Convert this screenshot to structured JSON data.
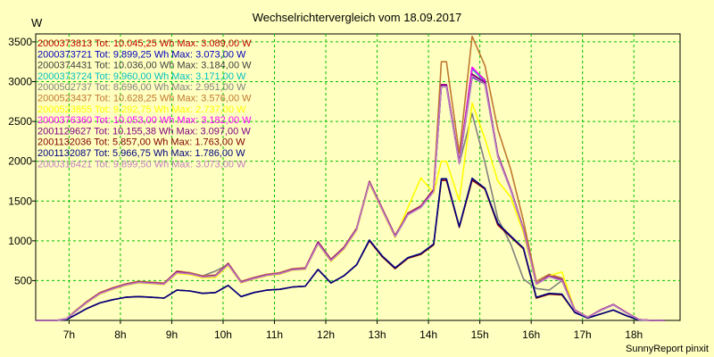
{
  "chart_data": {
    "type": "line",
    "title": "Wechselrichtervergleich vom 18.09.2017",
    "ylabel": "W",
    "footer": "SunnyReport pinxit",
    "ylim": [
      0,
      3600
    ],
    "xlim": [
      6.35,
      18.9
    ],
    "yticks": [
      500,
      1000,
      1500,
      2000,
      2500,
      3000,
      3500
    ],
    "xticks": [
      7,
      8,
      9,
      10,
      11,
      12,
      13,
      14,
      15,
      16,
      17,
      18
    ],
    "xtick_labels": [
      "7h",
      "8h",
      "9h",
      "10h",
      "11h",
      "12h",
      "13h",
      "14h",
      "15h",
      "16h",
      "17h",
      "18h"
    ],
    "grid": true,
    "legend_position": "top-left",
    "x": [
      6.35,
      6.75,
      6.95,
      7.1,
      7.35,
      7.6,
      7.85,
      8.1,
      8.35,
      8.6,
      8.85,
      9.1,
      9.35,
      9.6,
      9.85,
      10.1,
      10.35,
      10.6,
      10.85,
      11.1,
      11.35,
      11.6,
      11.85,
      12.1,
      12.35,
      12.6,
      12.85,
      13.1,
      13.35,
      13.6,
      13.85,
      14.1,
      14.25,
      14.35,
      14.6,
      14.85,
      15.1,
      15.35,
      15.6,
      15.85,
      16.1,
      16.35,
      16.6,
      16.85,
      17.1,
      17.35,
      17.6,
      17.85,
      18.1,
      18.35,
      18.6
    ],
    "series": [
      {
        "name": "2000373813 Tot: 10.045,25 Wh Max: 3.089,00 W",
        "color": "#c00000",
        "values": [
          0,
          0,
          20,
          100,
          230,
          340,
          400,
          450,
          480,
          470,
          460,
          610,
          590,
          550,
          560,
          710,
          480,
          530,
          570,
          590,
          640,
          650,
          980,
          760,
          910,
          1150,
          1740,
          1400,
          1060,
          1340,
          1430,
          1640,
          2960,
          2960,
          1990,
          3080,
          2990,
          2080,
          1650,
          1150,
          460,
          560,
          510,
          130,
          40,
          130,
          200,
          100,
          10,
          0,
          0
        ]
      },
      {
        "name": "2000373721 Tot: 9.899,25 Wh Max: 3.073,00 W",
        "color": "#0000c0",
        "values": [
          0,
          0,
          20,
          100,
          225,
          335,
          395,
          445,
          475,
          465,
          455,
          600,
          585,
          545,
          555,
          700,
          475,
          525,
          565,
          585,
          635,
          645,
          965,
          750,
          900,
          1140,
          1730,
          1390,
          1050,
          1330,
          1420,
          1620,
          2940,
          2940,
          1970,
          3060,
          2970,
          2060,
          1640,
          1140,
          455,
          550,
          500,
          125,
          40,
          125,
          195,
          95,
          10,
          0,
          0
        ]
      },
      {
        "name": "2000374431 Tot: 10.036,00 Wh Max: 3.184,00 W",
        "color": "#404040",
        "values": [
          0,
          0,
          20,
          100,
          230,
          340,
          400,
          450,
          480,
          470,
          460,
          610,
          590,
          550,
          560,
          710,
          480,
          530,
          570,
          590,
          640,
          650,
          980,
          760,
          910,
          1150,
          1740,
          1400,
          1060,
          1340,
          1430,
          1640,
          2960,
          2960,
          1990,
          3170,
          3020,
          2070,
          1650,
          1150,
          460,
          560,
          510,
          130,
          40,
          130,
          200,
          100,
          10,
          0,
          0
        ]
      },
      {
        "name": "2000373724 Tot: 9.960,00 Wh Max: 3.171,00 W",
        "color": "#00c0c0",
        "values": [
          0,
          0,
          20,
          100,
          228,
          338,
          398,
          448,
          478,
          468,
          458,
          605,
          588,
          548,
          558,
          705,
          478,
          528,
          568,
          588,
          638,
          648,
          975,
          755,
          905,
          1145,
          1735,
          1395,
          1055,
          1335,
          1425,
          1630,
          2950,
          2950,
          1980,
          3160,
          3000,
          2070,
          1645,
          1145,
          458,
          555,
          505,
          128,
          40,
          128,
          198,
          98,
          10,
          0,
          0
        ]
      },
      {
        "name": "2000502737 Tot: 8.696,00 Wh Max: 2.951,00 W",
        "color": "#808080",
        "values": [
          0,
          0,
          20,
          100,
          230,
          340,
          400,
          450,
          480,
          470,
          460,
          610,
          600,
          560,
          620,
          700,
          480,
          530,
          570,
          590,
          640,
          650,
          980,
          760,
          910,
          1150,
          1740,
          1400,
          1060,
          1340,
          1430,
          1640,
          2950,
          2950,
          1970,
          2600,
          1980,
          1280,
          960,
          520,
          400,
          380,
          500,
          120,
          40,
          130,
          200,
          100,
          10,
          0,
          0
        ]
      },
      {
        "name": "2000523437 Tot: 10.628,25 Wh Max: 3.576,00 W",
        "color": "#c07830",
        "values": [
          0,
          0,
          20,
          110,
          240,
          350,
          410,
          460,
          490,
          480,
          470,
          620,
          600,
          560,
          570,
          720,
          490,
          540,
          580,
          600,
          650,
          660,
          990,
          770,
          920,
          1160,
          1750,
          1410,
          1070,
          1350,
          1440,
          1650,
          3250,
          3250,
          2100,
          3570,
          3200,
          2400,
          1900,
          1250,
          490,
          580,
          530,
          130,
          40,
          130,
          200,
          100,
          10,
          0,
          0
        ]
      },
      {
        "name": "2000523855 Tot: 9.292,75 Wh Max: 2.737,00 W",
        "color": "#ffff00",
        "values": [
          0,
          0,
          20,
          100,
          220,
          330,
          390,
          440,
          470,
          460,
          450,
          590,
          575,
          535,
          540,
          690,
          470,
          520,
          560,
          580,
          630,
          640,
          960,
          740,
          890,
          1130,
          1720,
          1380,
          1040,
          1420,
          1790,
          1600,
          2000,
          2000,
          1500,
          2730,
          2280,
          1750,
          1550,
          1100,
          450,
          560,
          610,
          130,
          40,
          130,
          200,
          100,
          10,
          0,
          0
        ]
      },
      {
        "name": "2000376360 Tot: 10.053,00 Wh Max: 3.182,00 W",
        "color": "#ff00ff",
        "values": [
          0,
          0,
          20,
          100,
          230,
          340,
          400,
          450,
          480,
          470,
          460,
          610,
          590,
          550,
          560,
          710,
          480,
          530,
          570,
          590,
          640,
          650,
          980,
          760,
          910,
          1150,
          1740,
          1400,
          1060,
          1340,
          1430,
          1640,
          2960,
          2960,
          1990,
          3180,
          3010,
          2070,
          1650,
          1150,
          460,
          560,
          510,
          130,
          40,
          130,
          200,
          100,
          10,
          0,
          0
        ]
      },
      {
        "name": "2001129627 Tot: 10.155,38 Wh Max: 3.097,00 W",
        "color": "#800080",
        "values": [
          0,
          0,
          20,
          100,
          230,
          340,
          400,
          450,
          480,
          470,
          460,
          610,
          590,
          550,
          560,
          710,
          480,
          530,
          570,
          590,
          640,
          650,
          980,
          760,
          910,
          1150,
          1740,
          1400,
          1060,
          1340,
          1430,
          1640,
          2960,
          2960,
          1990,
          3097,
          2990,
          2080,
          1650,
          1150,
          460,
          560,
          510,
          130,
          40,
          130,
          200,
          100,
          10,
          0,
          0
        ]
      },
      {
        "name": "2001132036 Tot: 5.857,00 Wh Max: 1.763,00 W",
        "color": "#800000",
        "values": [
          0,
          0,
          10,
          60,
          150,
          220,
          260,
          290,
          300,
          290,
          280,
          380,
          370,
          340,
          350,
          440,
          300,
          350,
          380,
          390,
          420,
          430,
          640,
          470,
          560,
          700,
          1000,
          800,
          650,
          780,
          830,
          950,
          1760,
          1760,
          1170,
          1763,
          1650,
          1200,
          1050,
          900,
          280,
          330,
          320,
          100,
          30,
          80,
          130,
          60,
          5,
          0,
          0
        ]
      },
      {
        "name": "2001132087 Tot: 5.966,75 Wh Max: 1.786,00 W",
        "color": "#000080",
        "values": [
          0,
          0,
          10,
          60,
          150,
          220,
          260,
          290,
          300,
          290,
          280,
          380,
          370,
          340,
          350,
          440,
          300,
          350,
          380,
          390,
          420,
          430,
          640,
          470,
          560,
          700,
          1010,
          810,
          660,
          790,
          840,
          960,
          1780,
          1780,
          1180,
          1786,
          1660,
          1220,
          1060,
          910,
          290,
          340,
          330,
          100,
          30,
          80,
          130,
          60,
          5,
          0,
          0
        ]
      },
      {
        "name": "2000316421 Tot: 9.899,50 Wh Max: 3.073,00 W",
        "color": "#c080c0",
        "values": [
          0,
          0,
          20,
          100,
          225,
          335,
          395,
          445,
          475,
          465,
          455,
          600,
          585,
          545,
          555,
          700,
          475,
          525,
          565,
          585,
          635,
          645,
          965,
          750,
          900,
          1140,
          1730,
          1390,
          1050,
          1330,
          1420,
          1620,
          2940,
          2940,
          1970,
          3073,
          2970,
          2060,
          1640,
          1140,
          455,
          550,
          500,
          125,
          40,
          125,
          195,
          95,
          10,
          0,
          0
        ]
      }
    ]
  }
}
